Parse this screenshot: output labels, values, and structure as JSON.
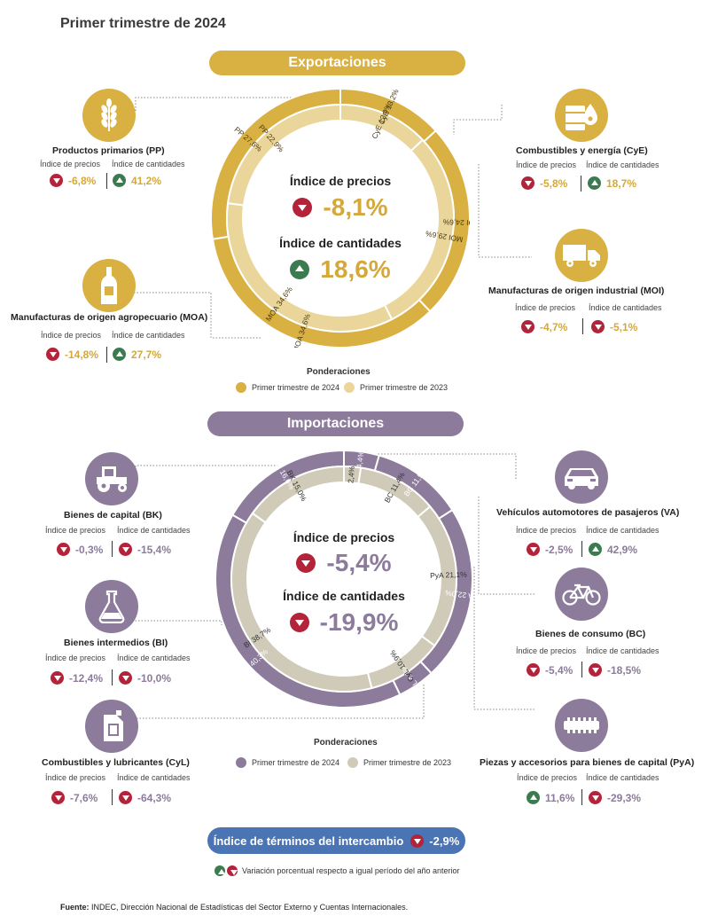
{
  "title": "Primer trimestre de 2024",
  "colors": {
    "export_2024": "#d9b042",
    "export_2023": "#ead59a",
    "import_2024": "#8c7b9b",
    "import_2023": "#cfcbb8",
    "down": "#b3233a",
    "up": "#3c7a4f",
    "terms": "#4a74b3"
  },
  "exports": {
    "header": "Exportaciones",
    "center_price_label": "Índice de precios",
    "center_price_value": "-8,1%",
    "center_qty_label": "Índice de cantidades",
    "center_qty_value": "18,6%",
    "weights_title": "Ponderaciones",
    "legend_2024": "Primer trimestre de 2024",
    "legend_2023": "Primer trimestre de 2023",
    "categories": [
      {
        "key": "PP",
        "name": "Productos primarios (PP)",
        "icon": "wheat-icon",
        "price": "-6,8%",
        "price_dir": "down",
        "qty": "41,2%",
        "qty_dir": "up"
      },
      {
        "key": "MOA",
        "name": "Manufacturas de origen agropecuario (MOA)",
        "icon": "bottle-icon",
        "price": "-14,8%",
        "price_dir": "down",
        "qty": "27,7%",
        "qty_dir": "up"
      },
      {
        "key": "CyE",
        "name": "Combustibles y energía (CyE)",
        "icon": "oil-barrel-icon",
        "price": "-5,8%",
        "price_dir": "down",
        "qty": "18,7%",
        "qty_dir": "up"
      },
      {
        "key": "MOI",
        "name": "Manufacturas de origen industrial (MOI)",
        "icon": "truck-icon",
        "price": "-4,7%",
        "price_dir": "down",
        "qty": "-5,1%",
        "qty_dir": "down"
      }
    ]
  },
  "imports": {
    "header": "Importaciones",
    "center_price_label": "Índice de precios",
    "center_price_value": "-5,4%",
    "center_qty_label": "Índice de cantidades",
    "center_qty_value": "-19,9%",
    "weights_title": "Ponderaciones",
    "legend_2024": "Primer trimestre de 2024",
    "legend_2023": "Primer trimestre de 2023",
    "categories": [
      {
        "key": "BK",
        "name": "Bienes de capital (BK)",
        "icon": "tractor-icon",
        "price": "-0,3%",
        "price_dir": "down",
        "qty": "-15,4%",
        "qty_dir": "down"
      },
      {
        "key": "BI",
        "name": "Bienes intermedios (BI)",
        "icon": "flask-icon",
        "price": "-12,4%",
        "price_dir": "down",
        "qty": "-10,0%",
        "qty_dir": "down"
      },
      {
        "key": "CyL",
        "name": "Combustibles y lubricantes (CyL)",
        "icon": "jerrycan-icon",
        "price": "-7,6%",
        "price_dir": "down",
        "qty": "-64,3%",
        "qty_dir": "down"
      },
      {
        "key": "VA",
        "name": "Vehículos automotores de pasajeros (VA)",
        "icon": "car-icon",
        "price": "-2,5%",
        "price_dir": "down",
        "qty": "42,9%",
        "qty_dir": "up"
      },
      {
        "key": "BC",
        "name": "Bienes de consumo (BC)",
        "icon": "bicycle-icon",
        "price": "-5,4%",
        "price_dir": "down",
        "qty": "-18,5%",
        "qty_dir": "down"
      },
      {
        "key": "PyA",
        "name": "Piezas y accesorios para bienes de capital (PyA)",
        "icon": "gear-part-icon",
        "price": "11,6%",
        "price_dir": "up",
        "qty": "-29,3%",
        "qty_dir": "down"
      }
    ]
  },
  "subheads": {
    "price": "Índice de precios",
    "qty": "Índice de cantidades"
  },
  "terms": {
    "label": "Índice de términos del intercambio",
    "value": "-2,9%"
  },
  "note": "Variación porcentual respecto a igual período del año anterior",
  "source_label": "Fuente:",
  "source_text": " INDEC, Dirección Nacional de Estadísticas del Sector Externo y Cuentas Internacionales.",
  "chart_data": [
    {
      "type": "pie",
      "title": "Exportaciones",
      "series": [
        {
          "name": "Primer trimestre de 2024",
          "labels": [
            "CyE",
            "MOI",
            "MOA",
            "PP"
          ],
          "values": [
            13.2,
            24.6,
            34.6,
            27.6
          ],
          "label_text": [
            "CyE 13,2%",
            "MOI 24,6%",
            "MOA 34,6%",
            "PP 27,6%"
          ]
        },
        {
          "name": "Primer trimestre de 2023",
          "labels": [
            "CyE",
            "MOI",
            "MOA",
            "PP"
          ],
          "values": [
            12.9,
            29.6,
            34.6,
            22.9
          ],
          "label_text": [
            "CyE 12,9%",
            "MOI 29,6%",
            "MOA 34,6%",
            "PP 22,9%"
          ]
        }
      ]
    },
    {
      "type": "pie",
      "title": "Importaciones",
      "series": [
        {
          "name": "Primer trimestre de 2024",
          "labels": [
            "VA",
            "BC",
            "PyA",
            "CyL",
            "BI",
            "BK"
          ],
          "values": [
            4.4,
            11.5,
            22.0,
            4.7,
            40.3,
            16.6
          ],
          "label_text": [
            "4,4%",
            "BC 11,5%",
            "PyA 22,0%",
            "CyL 4,7%",
            "BI 40,3%",
            "BK 16,6%"
          ]
        },
        {
          "name": "Primer trimestre de 2023",
          "labels": [
            "VA",
            "BC",
            "PyA",
            "CyL",
            "BI",
            "BK"
          ],
          "values": [
            2.4,
            11.4,
            21.1,
            10.9,
            38.7,
            15.0
          ],
          "label_text": [
            "2,4%",
            "BC 11,4%",
            "PyA 21,1%",
            "CyL 10,9%",
            "BI 38,7%",
            "BK 15,0%"
          ]
        }
      ]
    }
  ]
}
